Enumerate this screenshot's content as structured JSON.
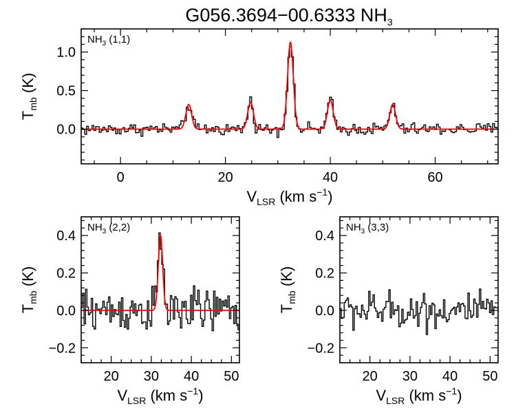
{
  "title": {
    "main": "G056.3694−00.6333 NH",
    "sub": "3"
  },
  "colors": {
    "data": "#000000",
    "fit": "#ff0000"
  },
  "chart_data": [
    {
      "id": "nh3_11",
      "type": "line",
      "label": {
        "main": "NH",
        "sub": "3",
        "rest": " (1,1)"
      },
      "xlabel": {
        "main": "V",
        "sub": "LSR",
        "rest": " (km s",
        "sup": "−1",
        "end": ")"
      },
      "ylabel": {
        "main": "T",
        "sub": "mb",
        "rest": " (K)"
      },
      "xlim": [
        -7.5,
        72
      ],
      "ylim": [
        -0.45,
        1.3
      ],
      "xticks": [
        0,
        20,
        40,
        60
      ],
      "xtick_labels": [
        "0",
        "20",
        "40",
        "60"
      ],
      "yticks": [
        0.0,
        0.5,
        1.0
      ],
      "ytick_labels": [
        "0.0",
        "0.5",
        "1.0"
      ],
      "noise": 0.04,
      "fit_components": [
        {
          "center": 13.0,
          "amp": 0.32,
          "sigma": 0.55
        },
        {
          "center": 24.8,
          "amp": 0.35,
          "sigma": 0.55
        },
        {
          "center": 32.4,
          "amp": 1.13,
          "sigma": 0.55
        },
        {
          "center": 40.0,
          "amp": 0.38,
          "sigma": 0.55
        },
        {
          "center": 51.9,
          "amp": 0.32,
          "sigma": 0.55
        }
      ]
    },
    {
      "id": "nh3_22",
      "type": "line",
      "label": {
        "main": "NH",
        "sub": "3",
        "rest": " (2,2)"
      },
      "xlabel": {
        "main": "V",
        "sub": "LSR",
        "rest": " (km s",
        "sup": "−1",
        "end": ")"
      },
      "ylabel": {
        "main": "T",
        "sub": "mb",
        "rest": " (K)"
      },
      "xlim": [
        12.5,
        52
      ],
      "ylim": [
        -0.28,
        0.5
      ],
      "xticks": [
        20,
        30,
        40,
        50
      ],
      "xtick_labels": [
        "20",
        "30",
        "40",
        "50"
      ],
      "yticks": [
        -0.2,
        0.0,
        0.2,
        0.4
      ],
      "ytick_labels": [
        "−0.2",
        "0.0",
        "0.2",
        "0.4"
      ],
      "noise": 0.06,
      "fit_components": [
        {
          "center": 32.3,
          "amp": 0.4,
          "sigma": 0.55
        }
      ]
    },
    {
      "id": "nh3_33",
      "type": "line",
      "label": {
        "main": "NH",
        "sub": "3",
        "rest": " (3,3)"
      },
      "xlabel": {
        "main": "V",
        "sub": "LSR",
        "rest": " (km s",
        "sup": "−1",
        "end": ")"
      },
      "ylabel": {
        "main": "T",
        "sub": "mb",
        "rest": " (K)"
      },
      "xlim": [
        12.5,
        52
      ],
      "ylim": [
        -0.28,
        0.5
      ],
      "xticks": [
        20,
        30,
        40,
        50
      ],
      "xtick_labels": [
        "20",
        "30",
        "40",
        "50"
      ],
      "yticks": [
        -0.2,
        0.0,
        0.2,
        0.4
      ],
      "ytick_labels": [
        "−0.2",
        "0.0",
        "0.2",
        "0.4"
      ],
      "noise": 0.05,
      "fit_components": []
    }
  ]
}
